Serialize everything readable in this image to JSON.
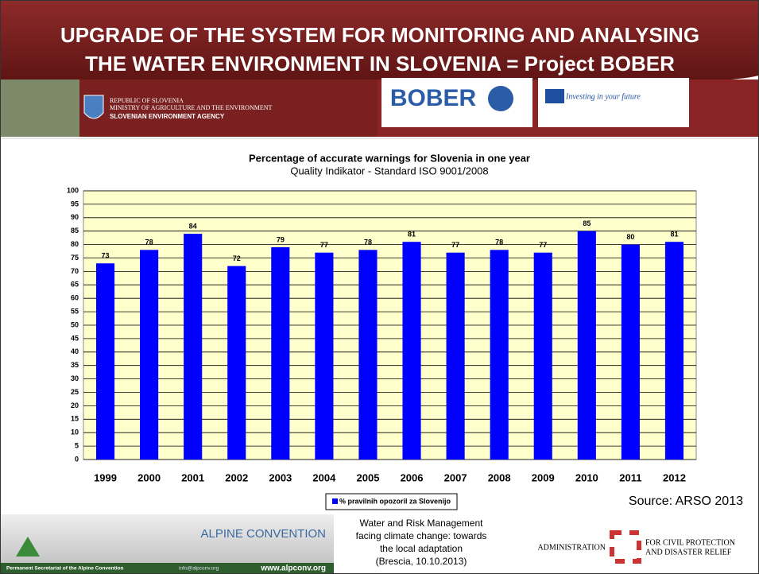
{
  "header": {
    "title_lines": [
      "UPGRADE OF THE SYSTEM FOR MONITORING AND ANALYSING",
      "THE WATER ENVIRONMENT IN SLOVENIA = Project BOBER"
    ],
    "ministry_lines": [
      "REPUBLIC OF SLOVENIA",
      "MINISTRY OF AGRICULTURE AND THE ENVIRONMENT"
    ],
    "agency": "SLOVENIAN ENVIRONMENT AGENCY",
    "bober": "BOBER",
    "eu": "Investing in your future"
  },
  "chart_data": {
    "type": "bar",
    "title": "Percentage of accurate warnings for Slovenia in one year",
    "subtitle": "Quality Indikator - Standard ISO 9001/2008",
    "categories": [
      "1999",
      "2000",
      "2001",
      "2002",
      "2003",
      "2004",
      "2005",
      "2006",
      "2007",
      "2008",
      "2009",
      "2010",
      "2011",
      "2012"
    ],
    "series": [
      {
        "name": "% pravilnih opozoril za Slovenijo",
        "color": "#0000ff",
        "values": [
          73,
          78,
          84,
          72,
          79,
          77,
          78,
          81,
          77,
          78,
          77,
          85,
          80,
          81
        ]
      }
    ],
    "ylim": [
      0,
      100
    ],
    "yticks": [
      0,
      5,
      10,
      15,
      20,
      25,
      30,
      35,
      40,
      45,
      50,
      55,
      60,
      65,
      70,
      75,
      80,
      85,
      90,
      95,
      100
    ],
    "grid": true,
    "legend": "bottom"
  },
  "source": "Source: ARSO 2013",
  "footer": {
    "alpine": "ALPINE CONVENTION",
    "secretariat": "Permanent Secretariat of the Alpine Convention",
    "email": "info@alpconv.org",
    "web": "www.alpconv.org",
    "event_lines": [
      "Water and Risk Management",
      "facing climate change: towards",
      "the local adaptation",
      "(Brescia, 10.10.2013)"
    ],
    "admin": "ADMINISTRATION",
    "admin_lines": [
      "FOR CIVIL PROTECTION",
      "AND DISASTER RELIEF"
    ]
  }
}
